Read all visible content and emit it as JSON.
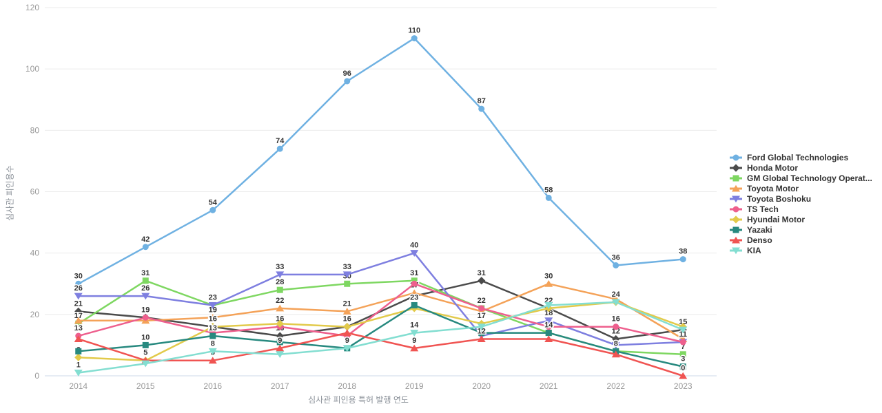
{
  "axes": {
    "y_title": "심사관 피인용수",
    "x_title": "심사관 피인용 특허 발행 연도",
    "y_ticks": [
      0,
      20,
      40,
      60,
      80,
      100,
      120
    ],
    "x_ticks": [
      "2014",
      "2015",
      "2016",
      "2017",
      "2018",
      "2019",
      "2020",
      "2021",
      "2022",
      "2023"
    ]
  },
  "colors": {
    "grid_line": "#ebebeb",
    "axis_line": "#cdd9ea",
    "tick_label": "#999999",
    "data_label": "#333333"
  },
  "chart_data": {
    "type": "line",
    "title": "",
    "x": [
      "2014",
      "2015",
      "2016",
      "2017",
      "2018",
      "2019",
      "2020",
      "2021",
      "2022",
      "2023"
    ],
    "xlabel": "심사관 피인용 특허 발행 연도",
    "ylabel": "심사관 피인용수",
    "ylim": [
      0,
      120
    ],
    "grid": true,
    "legend_position": "right",
    "series": [
      {
        "name": "Ford Global Technologies",
        "color": "#6fb1e2",
        "marker": "circle",
        "values": [
          30,
          42,
          54,
          74,
          96,
          110,
          87,
          58,
          36,
          38
        ],
        "label_shown": [
          1,
          1,
          1,
          1,
          1,
          1,
          1,
          1,
          1,
          1
        ]
      },
      {
        "name": "Honda Motor",
        "color": "#4b4b4b",
        "marker": "diamond",
        "values": [
          21,
          19,
          16,
          13,
          16,
          26,
          31,
          22,
          12,
          15
        ],
        "label_shown": [
          1,
          0,
          0,
          1,
          0,
          0,
          1,
          1,
          1,
          1
        ]
      },
      {
        "name": "GM Global Technology Operat...",
        "color": "#7ed761",
        "marker": "square",
        "values": [
          17,
          31,
          23,
          28,
          30,
          31,
          22,
          14,
          8,
          7
        ],
        "label_shown": [
          1,
          1,
          1,
          1,
          1,
          1,
          1,
          0,
          0,
          1
        ]
      },
      {
        "name": "Toyota Motor",
        "color": "#f4a258",
        "marker": "triangle-up",
        "values": [
          18,
          18,
          19,
          22,
          21,
          27,
          21,
          30,
          25,
          12
        ],
        "label_shown": [
          0,
          0,
          1,
          1,
          1,
          1,
          0,
          1,
          0,
          0
        ]
      },
      {
        "name": "Toyota Boshoku",
        "color": "#7e7fe0",
        "marker": "triangle-down",
        "values": [
          26,
          26,
          23,
          33,
          33,
          40,
          13,
          18,
          10,
          11
        ],
        "label_shown": [
          1,
          1,
          0,
          1,
          1,
          1,
          0,
          1,
          0,
          0
        ]
      },
      {
        "name": "TS Tech",
        "color": "#ee5f8d",
        "marker": "circle",
        "values": [
          13,
          19,
          14,
          16,
          13,
          30,
          22,
          16,
          16,
          11
        ],
        "label_shown": [
          1,
          1,
          0,
          1,
          0,
          0,
          0,
          0,
          1,
          1
        ]
      },
      {
        "name": "Hyundai Motor",
        "color": "#e2ca4a",
        "marker": "diamond",
        "values": [
          6,
          5,
          16,
          17,
          16,
          22,
          17,
          22,
          24,
          16
        ],
        "label_shown": [
          1,
          0,
          1,
          0,
          1,
          0,
          1,
          0,
          1,
          0
        ]
      },
      {
        "name": "Yazaki",
        "color": "#27897f",
        "marker": "square",
        "values": [
          8,
          10,
          13,
          11,
          9,
          23,
          14,
          14,
          8,
          3
        ],
        "label_shown": [
          0,
          1,
          1,
          0,
          1,
          1,
          0,
          1,
          1,
          1
        ]
      },
      {
        "name": "Denso",
        "color": "#f05452",
        "marker": "triangle-up",
        "values": [
          12,
          5,
          5,
          9,
          14,
          9,
          12,
          12,
          7,
          0
        ],
        "label_shown": [
          0,
          1,
          1,
          1,
          0,
          1,
          1,
          0,
          0,
          1
        ]
      },
      {
        "name": "KIA",
        "color": "#83ded1",
        "marker": "triangle-down",
        "values": [
          1,
          4,
          8,
          7,
          9,
          14,
          16,
          23,
          24,
          15
        ],
        "label_shown": [
          1,
          0,
          1,
          0,
          0,
          1,
          0,
          0,
          0,
          0
        ]
      }
    ]
  }
}
